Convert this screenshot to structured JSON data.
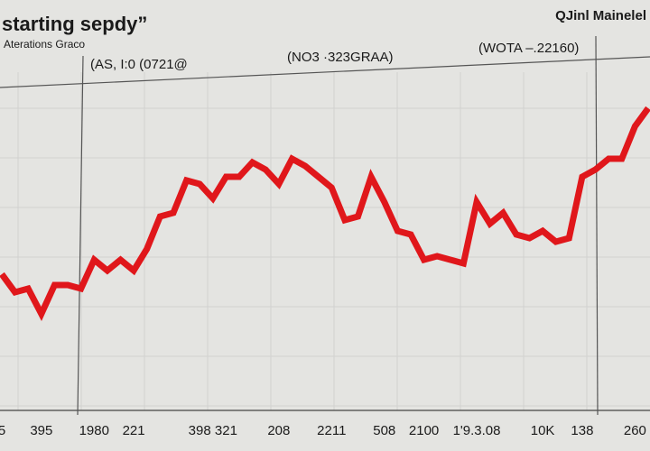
{
  "chart_data": {
    "type": "line",
    "title": "starting sepdy”",
    "subtitle": "Aterations Graco",
    "corner_label": "QJinl Mainelel",
    "annotations": [
      "(AS, I:0 (0721@",
      "(NO3 ·323GRAA)",
      "(WOTA –.22160)"
    ],
    "categories": [
      "5",
      null,
      null,
      "395",
      null,
      null,
      null,
      "1980",
      null,
      null,
      "221",
      null,
      null,
      null,
      null,
      "398",
      null,
      "321",
      null,
      null,
      null,
      "208",
      null,
      null,
      null,
      "2211",
      null,
      null,
      null,
      "508",
      null,
      null,
      "2100",
      null,
      null,
      null,
      "1'9.3.08",
      null,
      null,
      null,
      null,
      "10K",
      null,
      null,
      "138",
      null,
      null,
      null,
      "260",
      null
    ],
    "series": [
      {
        "color": "#e0171b",
        "values": [
          39,
          34,
          35,
          28,
          36,
          36,
          35,
          43,
          40,
          43,
          40,
          46,
          55,
          56,
          65,
          64,
          60,
          66,
          66,
          70,
          68,
          64,
          71,
          69,
          66,
          63,
          54,
          55,
          66,
          59,
          51,
          50,
          43,
          44,
          43,
          42,
          59,
          53,
          56,
          50,
          49,
          51,
          48,
          49,
          66,
          68,
          71,
          71,
          80,
          85
        ]
      }
    ],
    "ylim": [
      0,
      100
    ],
    "grid": true
  }
}
